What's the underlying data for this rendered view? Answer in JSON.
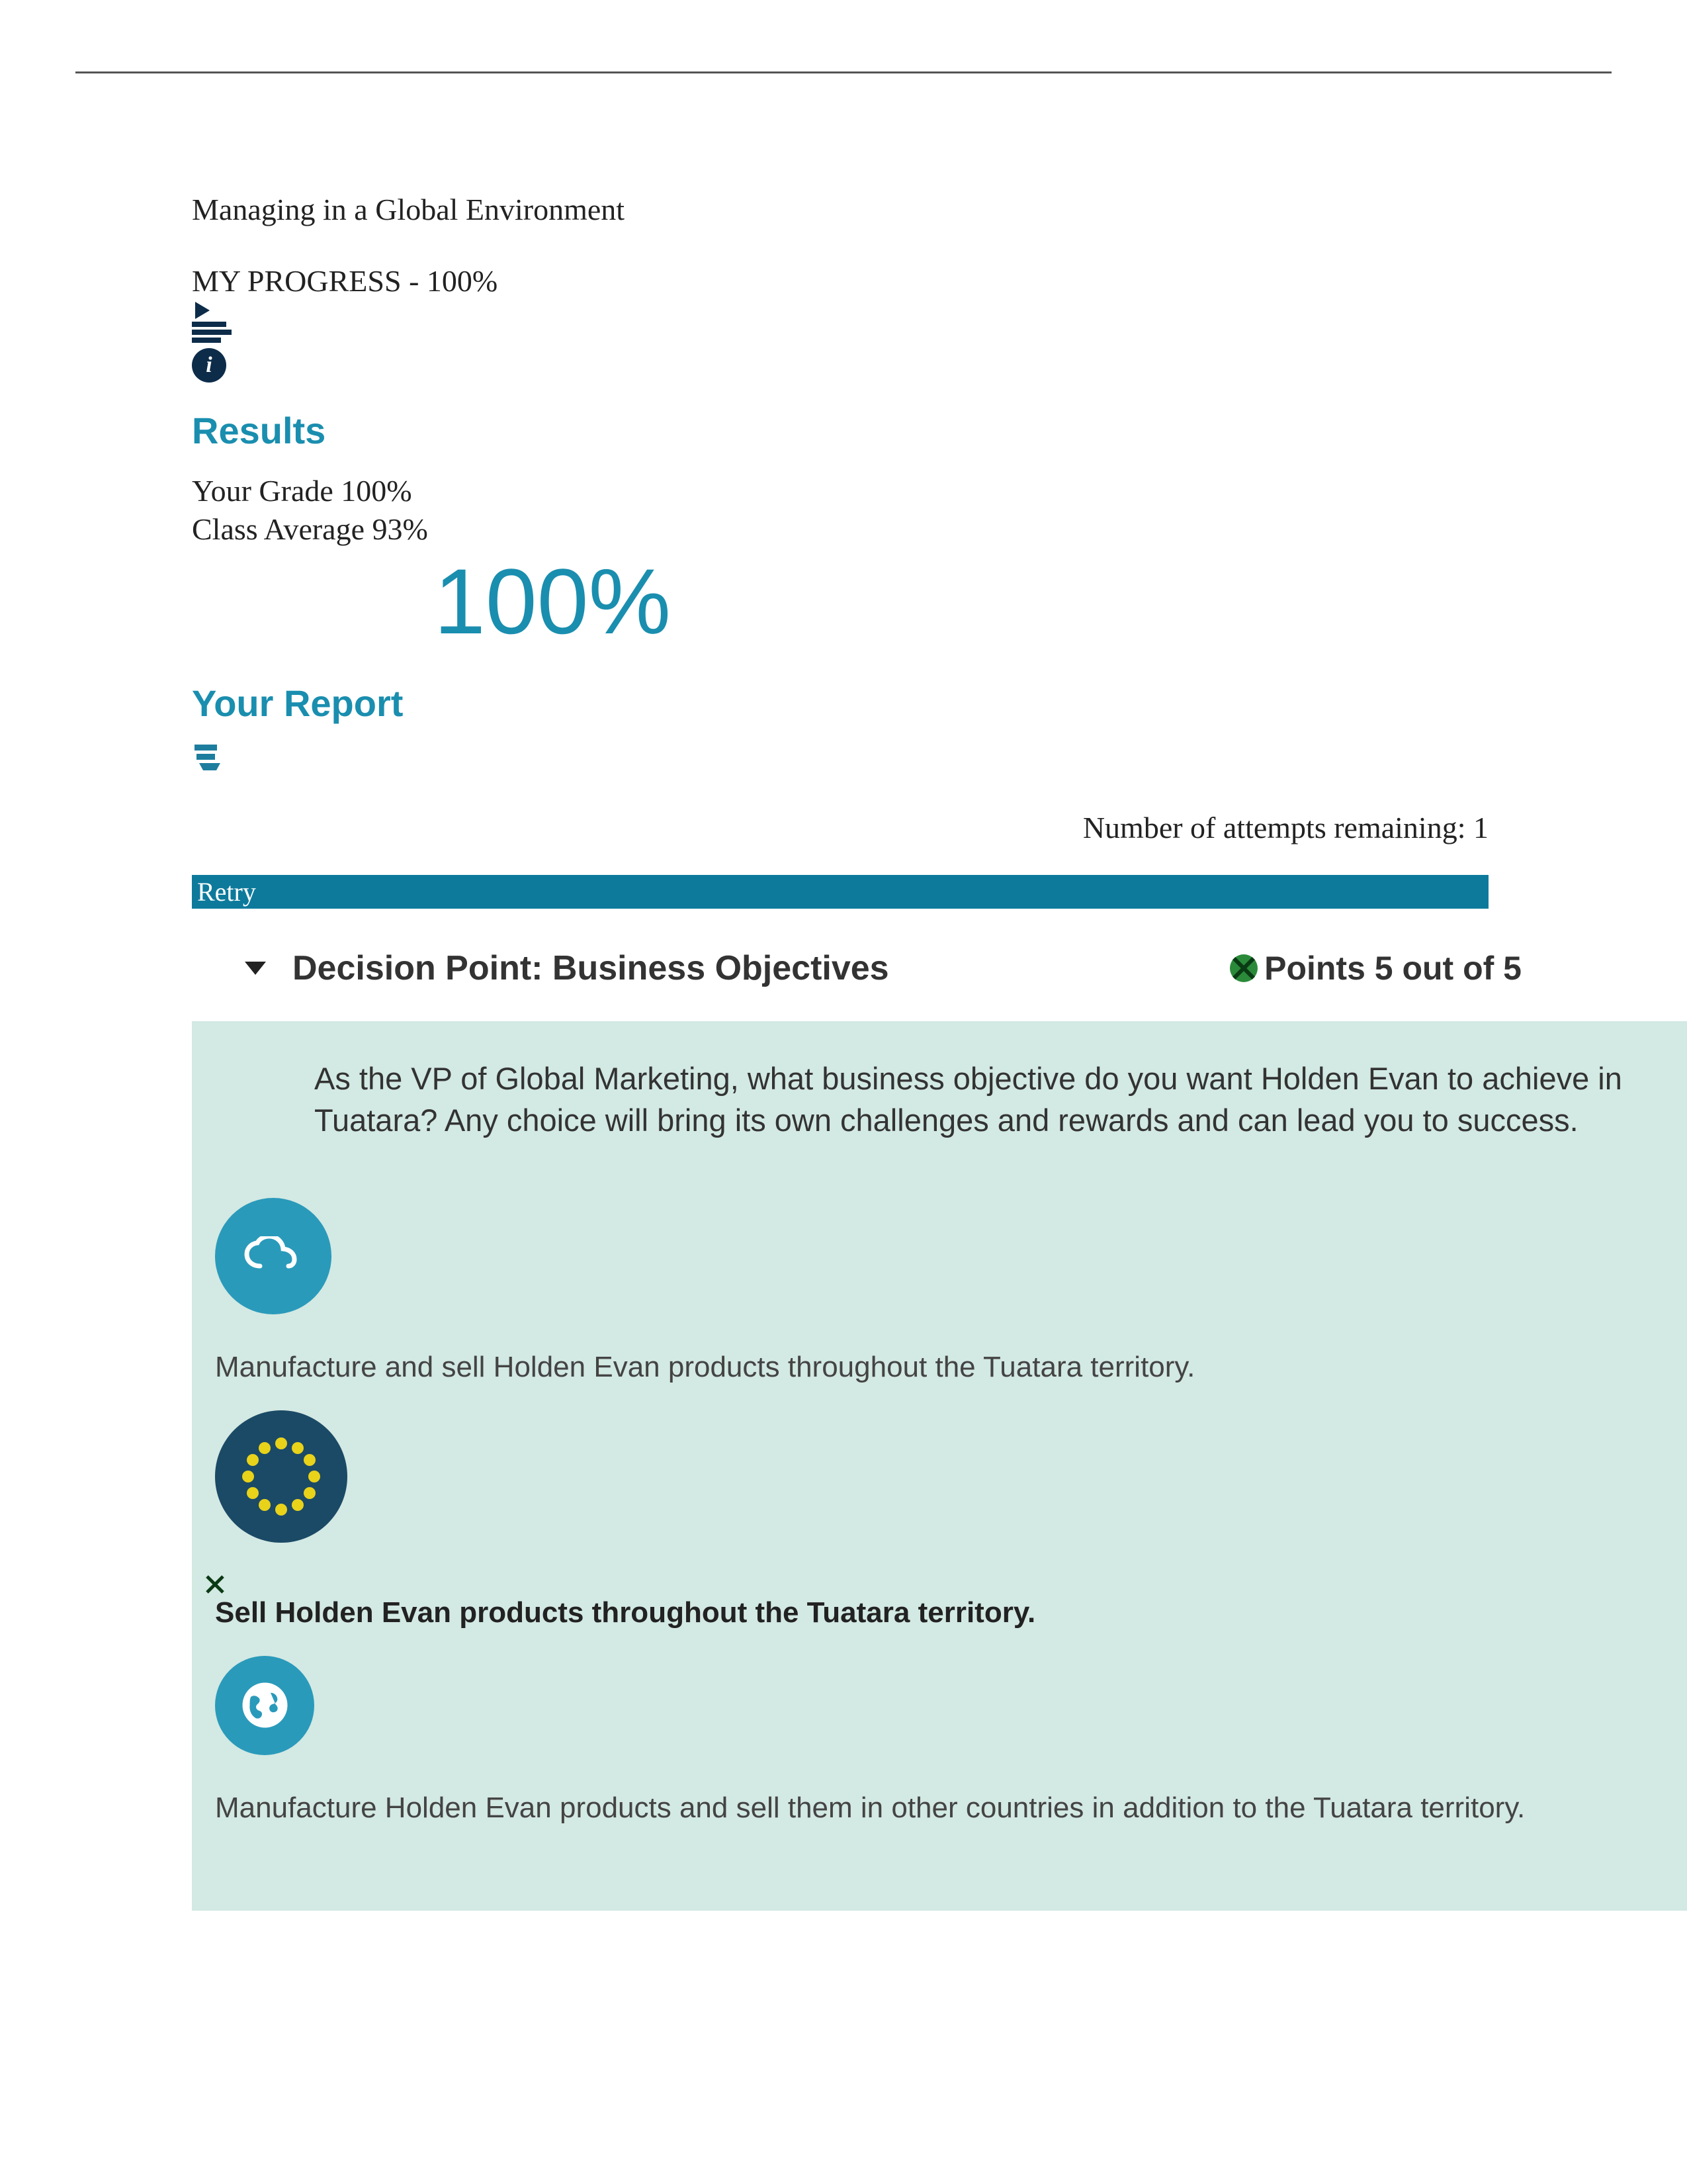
{
  "course_title": "Managing in a Global Environment",
  "progress_label": "MY PROGRESS - 100%",
  "results_heading": "Results",
  "your_grade": "Your Grade 100%",
  "class_average": "Class Average 93%",
  "big_score": "100%",
  "your_report_heading": "Your Report",
  "attempts_remaining": "Number of attempts remaining: 1",
  "retry_label": "Retry",
  "decision_point": {
    "title": "Decision Point: Business Objectives",
    "points": "Points 5 out of 5",
    "question": "As the VP of Global Marketing, what business objective do you want Holden Evan to achieve in Tuatara? Any choice will bring its own challenges and rewards and can lead you to success.",
    "options": [
      {
        "text": "Manufacture and sell Holden Evan products throughout the Tuatara territory.",
        "selected": false
      },
      {
        "text": "Sell Holden Evan products throughout the Tuatara territory.",
        "selected": true
      },
      {
        "text": "Manufacture Holden Evan products and sell them in other countries in addition to the Tuatara territory.",
        "selected": false
      }
    ]
  },
  "colors": {
    "teal": "#1a8eaf",
    "darknavy": "#0d2c4a",
    "bannerblue": "#0d7a9c",
    "mint": "#d3e9e3",
    "icon_teal": "#2a9abb",
    "icon_navy": "#1b4a66",
    "dot_yellow": "#e8d21a",
    "badge_green": "#2a8a3a"
  }
}
